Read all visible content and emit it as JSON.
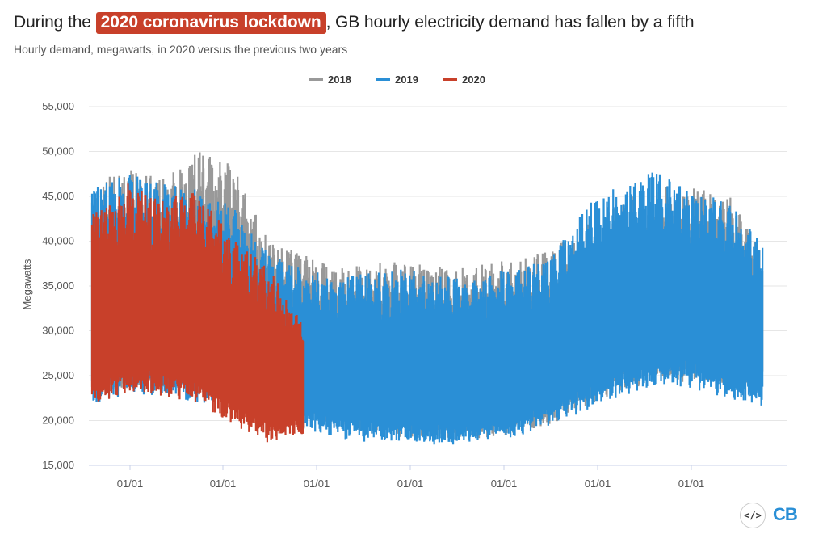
{
  "title": {
    "prefix": "During the ",
    "highlight": "2020 coronavirus lockdown",
    "suffix": ", GB hourly electricity demand has fallen by a fifth"
  },
  "subtitle": "Hourly demand, megawatts, in 2020 versus the previous two years",
  "branding": {
    "embed_icon": "code-embed-icon",
    "logo_text": "CB"
  },
  "colors": {
    "2018": "#999999",
    "2019": "#2a8fd6",
    "2020": "#c8402a",
    "highlight_bg": "#c8402a"
  },
  "chart_data": {
    "type": "area",
    "ylabel": "Megawatts",
    "xlabel": "",
    "ylim": [
      15000,
      55000
    ],
    "yticks": [
      15000,
      20000,
      25000,
      30000,
      35000,
      40000,
      45000,
      50000,
      55000
    ],
    "ytick_labels": [
      "15,000",
      "20,000",
      "25,000",
      "30,000",
      "35,000",
      "40,000",
      "45,000",
      "50,000",
      "55,000"
    ],
    "xtick_labels": [
      "01/01",
      "01/01",
      "01/01",
      "01/01",
      "01/01",
      "01/01",
      "01/01"
    ],
    "legend_position": "top-center",
    "grid": true,
    "series": [
      {
        "name": "2018",
        "envelope": {
          "x_weeks": [
            0,
            4,
            8,
            12,
            16,
            20,
            24,
            28,
            32,
            36,
            40,
            44,
            48,
            52,
            56,
            60,
            64,
            68,
            72,
            76
          ],
          "peak_mw": [
            46500,
            48500,
            47000,
            50000,
            48500,
            40000,
            38500,
            37000,
            37500,
            38000,
            37000,
            37500,
            38000,
            39000,
            42000,
            44500,
            46000,
            46000,
            45500,
            39000
          ],
          "trough_mw": [
            22500,
            23500,
            23000,
            23000,
            22000,
            21000,
            20500,
            19000,
            18500,
            18000,
            17500,
            18000,
            18500,
            19500,
            21500,
            23000,
            24500,
            24000,
            23500,
            23000
          ]
        }
      },
      {
        "name": "2019",
        "envelope": {
          "x_weeks": [
            0,
            4,
            8,
            12,
            16,
            20,
            24,
            28,
            32,
            36,
            40,
            44,
            48,
            52,
            56,
            60,
            64,
            68,
            72,
            76
          ],
          "peak_mw": [
            46000,
            47500,
            46500,
            46000,
            44000,
            38500,
            37000,
            36000,
            36500,
            37000,
            36000,
            36500,
            37000,
            38000,
            44000,
            46500,
            48000,
            45500,
            44500,
            40000
          ],
          "trough_mw": [
            21500,
            23000,
            22500,
            22000,
            21500,
            20000,
            19000,
            18000,
            17500,
            17500,
            17000,
            17500,
            18000,
            19500,
            21000,
            22500,
            24000,
            23500,
            22500,
            21500
          ]
        }
      },
      {
        "name": "2020",
        "envelope": {
          "x_weeks": [
            0,
            4,
            8,
            12,
            16,
            20,
            24
          ],
          "peak_mw": [
            43000,
            46500,
            44500,
            46000,
            40500,
            37000,
            31000
          ],
          "trough_mw": [
            21500,
            23000,
            22500,
            22000,
            19500,
            17500,
            18500
          ]
        }
      }
    ]
  }
}
